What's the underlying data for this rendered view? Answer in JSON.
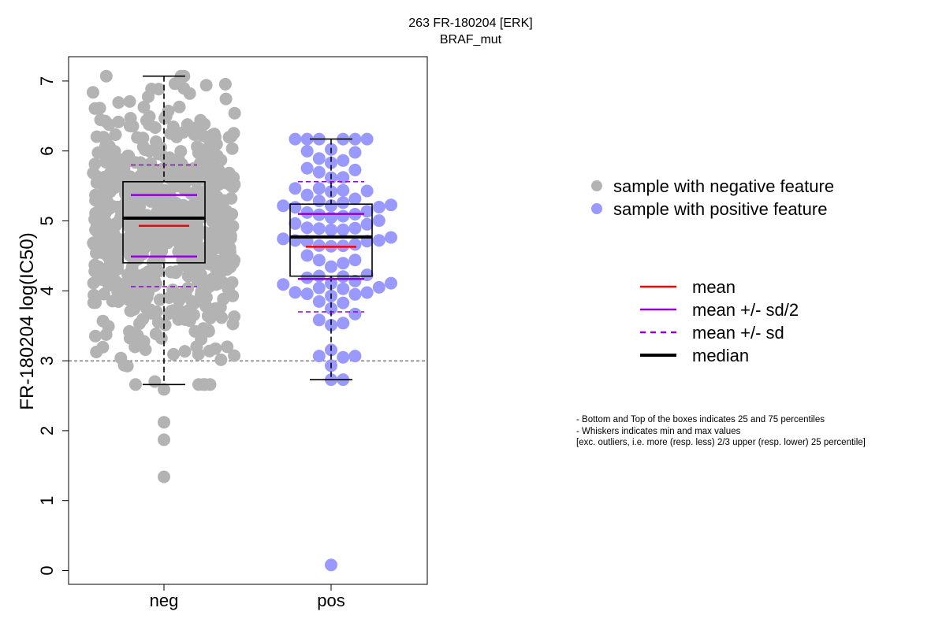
{
  "chart_data": {
    "type": "box-swarm",
    "title": "263 FR-180204 [ERK]",
    "subtitle": "BRAF_mut",
    "ylabel": "FR-180204 log(IC50)",
    "xlabel": "",
    "ylim": [
      -0.2,
      7.35
    ],
    "y_ticks": [
      "0",
      "1",
      "2",
      "3",
      "4",
      "5",
      "6",
      "7"
    ],
    "threshold_y": 3,
    "categories": [
      "neg",
      "pos"
    ],
    "groups": [
      {
        "label": "neg",
        "color": "#b3b3b3",
        "n_points": 700,
        "whisker_min": 2.66,
        "q1": 4.4,
        "median": 5.04,
        "q3": 5.56,
        "whisker_max": 7.07,
        "mean": 4.93,
        "mean_minus_half_sd": 4.49,
        "mean_plus_half_sd": 5.37,
        "mean_minus_sd": 4.06,
        "mean_plus_sd": 5.8,
        "outliers": [
          2.12,
          1.87,
          1.34,
          2.59
        ]
      },
      {
        "label": "pos",
        "color": "#9999ff",
        "n_points": 90,
        "whisker_min": 2.73,
        "q1": 4.21,
        "median": 4.77,
        "q3": 5.24,
        "whisker_max": 6.17,
        "mean": 4.63,
        "mean_minus_half_sd": 4.17,
        "mean_plus_half_sd": 5.1,
        "mean_minus_sd": 3.7,
        "mean_plus_sd": 5.56,
        "outliers": [
          0.08
        ]
      }
    ],
    "legend_points": [
      {
        "label": "sample with negative feature",
        "color": "#b3b3b3"
      },
      {
        "label": "sample with positive feature",
        "color": "#9999ff"
      }
    ],
    "legend_lines": [
      {
        "label": "mean",
        "color": "#ff0000",
        "style": "solid",
        "weight": "normal"
      },
      {
        "label": "mean +/- sd/2",
        "color": "#9400d3",
        "style": "solid",
        "weight": "normal"
      },
      {
        "label": "mean +/- sd",
        "color": "#9400d3",
        "style": "dashed",
        "weight": "normal"
      },
      {
        "label": "median",
        "color": "#000000",
        "style": "solid",
        "weight": "bold"
      }
    ],
    "notes": [
      "- Bottom and Top of the boxes indicates 25 and 75 percentiles",
      "- Whiskers indicates min and max values",
      "[exc. outliers, i.e. more (resp. less) 2/3 upper (resp. lower) 25 percentile]"
    ]
  }
}
